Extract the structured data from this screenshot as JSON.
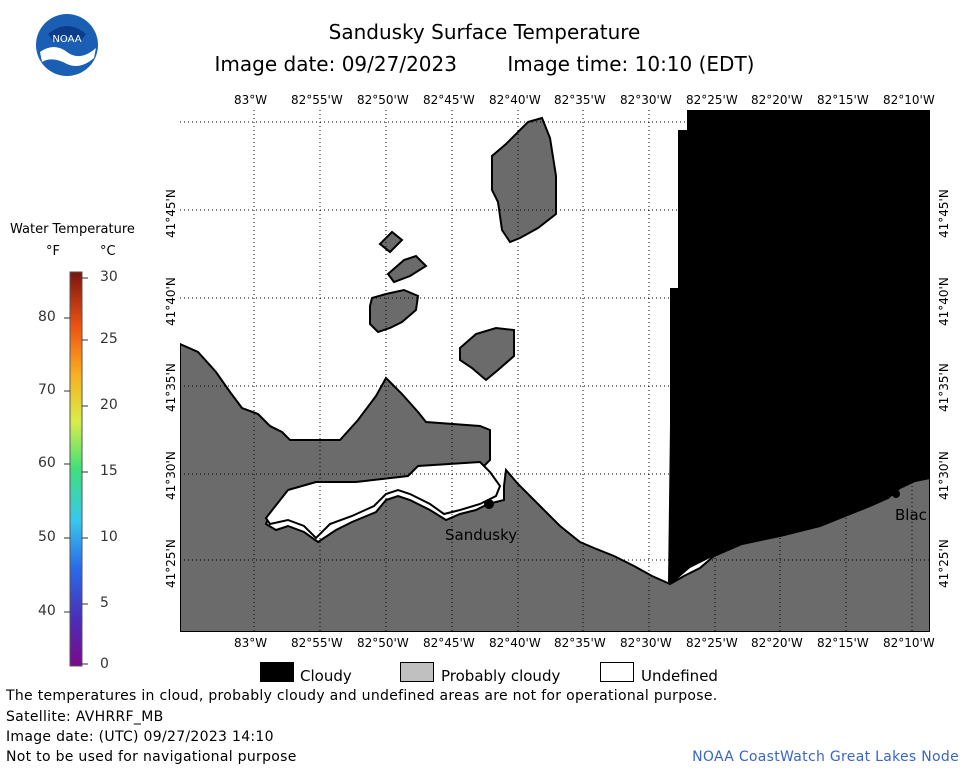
{
  "header": {
    "title": "Sandusky Surface Temperature",
    "image_date": "Image date: 09/27/2023",
    "image_time": "Image time: 10:10 (EDT)"
  },
  "logo": {
    "text": "NOAA",
    "icon": "noaa-logo-icon"
  },
  "map": {
    "lon_labels": [
      "83°W",
      "82°55'W",
      "82°50'W",
      "82°45'W",
      "82°40'W",
      "82°35'W",
      "82°30'W",
      "82°25'W",
      "82°20'W",
      "82°15'W",
      "82°10'W"
    ],
    "lat_labels": [
      "41°45'N",
      "41°40'N",
      "41°35'N",
      "41°30'N",
      "41°25'N"
    ],
    "cities": [
      {
        "name": "Sandusky"
      },
      {
        "name": "Blac"
      }
    ],
    "colors": {
      "land": "#6b6b6b",
      "cloud": "#000000",
      "undefined": "#ffffff",
      "coast": "#000000"
    }
  },
  "colorbar": {
    "title": "Water Temperature",
    "unit_f": "°F",
    "unit_c": "°C",
    "f_labels": [
      "80",
      "70",
      "60",
      "50",
      "40"
    ],
    "c_labels": [
      "30",
      "25",
      "20",
      "15",
      "10",
      "5",
      "0"
    ]
  },
  "key": {
    "items": [
      {
        "label": "Cloudy",
        "color": "#000000"
      },
      {
        "label": "Probably cloudy",
        "color": "#c0c0c0"
      },
      {
        "label": "Undefined",
        "color": "#ffffff"
      }
    ]
  },
  "footer": {
    "line1": "The temperatures in cloud, probably cloudy and undefined areas are not for operational purpose.",
    "line2": "Satellite: AVHRRF_MB",
    "line3": "Image date: (UTC) 09/27/2023  14:10",
    "line4": "Not to be used for navigational purpose",
    "credit": "NOAA CoastWatch Great Lakes Node"
  }
}
